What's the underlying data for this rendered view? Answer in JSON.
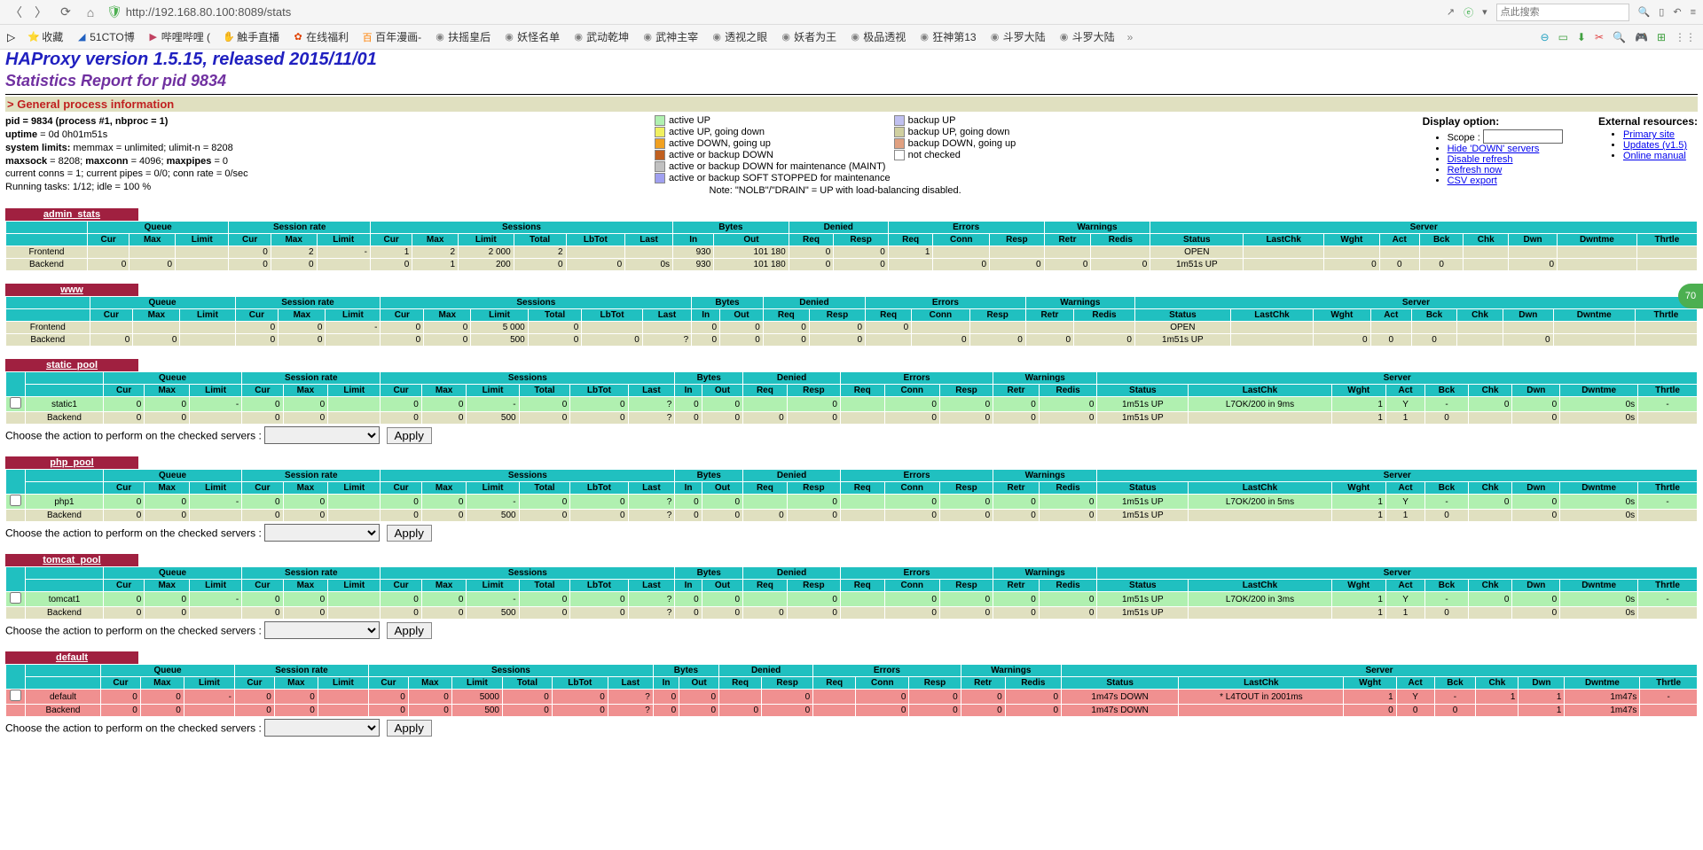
{
  "browser": {
    "url": "http://192.168.80.100:8089/stats",
    "search_placeholder": "点此搜索",
    "bookmarks": [
      {
        "label": "收藏",
        "icon": "⭐",
        "color": "#ffb020"
      },
      {
        "label": "51CTO博",
        "icon": "◢",
        "color": "#2060c0"
      },
      {
        "label": "哔哩哔哩 (",
        "icon": "▶",
        "color": "#c04060"
      },
      {
        "label": "触手直播",
        "icon": "✋",
        "color": "#c04060"
      },
      {
        "label": "在线福利",
        "icon": "✿",
        "color": "#e04000"
      },
      {
        "label": "百年漫画-",
        "icon": "百",
        "color": "#ff8000"
      },
      {
        "label": "扶摇皇后",
        "icon": "◉",
        "color": "#808080"
      },
      {
        "label": "妖怪名单",
        "icon": "◉",
        "color": "#808080"
      },
      {
        "label": "武动乾坤",
        "icon": "◉",
        "color": "#808080"
      },
      {
        "label": "武神主宰",
        "icon": "◉",
        "color": "#808080"
      },
      {
        "label": "透视之眼",
        "icon": "◉",
        "color": "#808080"
      },
      {
        "label": "妖者为王",
        "icon": "◉",
        "color": "#808080"
      },
      {
        "label": "极品透视",
        "icon": "◉",
        "color": "#808080"
      },
      {
        "label": "狂神第13",
        "icon": "◉",
        "color": "#808080"
      },
      {
        "label": "斗罗大陆",
        "icon": "◉",
        "color": "#808080"
      },
      {
        "label": "斗罗大陆",
        "icon": "◉",
        "color": "#808080"
      }
    ]
  },
  "titles": {
    "main": "HAProxy version 1.5.15, released 2015/11/01",
    "sub": "Statistics Report for pid 9834",
    "gpi": "> General process information"
  },
  "proc_info": {
    "l1": "pid = 9834 (process #1, nbproc = 1)",
    "l2": "uptime = 0d 0h01m51s",
    "l3": "system limits: memmax = unlimited; ulimit-n = 8208",
    "l4": "maxsock = 8208; maxconn = 4096; maxpipes = 0",
    "l5": "current conns = 1; current pipes = 0/0; conn rate = 0/sec",
    "l6": "Running tasks: 1/12; idle = 100 %"
  },
  "legend": {
    "col1": [
      {
        "color": "#b0f0b0",
        "label": "active UP"
      },
      {
        "color": "#f0f060",
        "label": "active UP, going down"
      },
      {
        "color": "#f0a020",
        "label": "active DOWN, going up"
      },
      {
        "color": "#c06020",
        "label": "active or backup DOWN"
      },
      {
        "color": "#c0c0c0",
        "label": "active or backup DOWN for maintenance (MAINT)"
      },
      {
        "color": "#a0a0f0",
        "label": "active or backup SOFT STOPPED for maintenance"
      }
    ],
    "col2": [
      {
        "color": "#c0c0f0",
        "label": "backup UP"
      },
      {
        "color": "#d0d0a0",
        "label": "backup UP, going down"
      },
      {
        "color": "#e0a080",
        "label": "backup DOWN, going up"
      },
      {
        "color": "#ffffff",
        "label": "not checked"
      }
    ],
    "note": "Note: \"NOLB\"/\"DRAIN\" = UP with load-balancing disabled."
  },
  "display_option": {
    "title": "Display option:",
    "scope_label": "Scope :",
    "links": [
      "Hide 'DOWN' servers",
      "Disable refresh",
      "Refresh now",
      "CSV export"
    ]
  },
  "ext_res": {
    "title": "External resources:",
    "links": [
      "Primary site",
      "Updates (v1.5)",
      "Online manual"
    ]
  },
  "col_groups": [
    "",
    "Queue",
    "Session rate",
    "Sessions",
    "Bytes",
    "Denied",
    "Errors",
    "Warnings",
    "Server"
  ],
  "sub_cols_fe": [
    "",
    "Cur",
    "Max",
    "Limit",
    "Cur",
    "Max",
    "Limit",
    "Cur",
    "Max",
    "Limit",
    "Total",
    "LbTot",
    "Last",
    "In",
    "Out",
    "Req",
    "Resp",
    "Req",
    "Conn",
    "Resp",
    "Retr",
    "Redis",
    "Status",
    "LastChk",
    "Wght",
    "Act",
    "Bck",
    "Chk",
    "Dwn",
    "Dwntme",
    "Thrtle"
  ],
  "action_label": "Choose the action to perform on the checked servers :",
  "apply_label": "Apply",
  "proxies": [
    {
      "name": "admin_stats",
      "has_checkbox": false,
      "rows": [
        {
          "cls": "",
          "cells": [
            "Frontend",
            "",
            "",
            "",
            "0",
            "2",
            "-",
            "1",
            "2",
            "2 000",
            "2",
            "",
            "",
            "930",
            "101 180",
            "0",
            "0",
            "1",
            "",
            "",
            "",
            "",
            "OPEN",
            "",
            "",
            "",
            "",
            "",
            "",
            "",
            ""
          ]
        },
        {
          "cls": "",
          "cells": [
            "Backend",
            "0",
            "0",
            "",
            "0",
            "0",
            "",
            "0",
            "1",
            "200",
            "0",
            "0",
            "0s",
            "930",
            "101 180",
            "0",
            "0",
            "",
            "0",
            "0",
            "0",
            "0",
            "1m51s UP",
            "",
            "0",
            "0",
            "0",
            "",
            "0",
            "",
            ""
          ]
        }
      ]
    },
    {
      "name": "www",
      "has_checkbox": false,
      "rows": [
        {
          "cls": "",
          "cells": [
            "Frontend",
            "",
            "",
            "",
            "0",
            "0",
            "-",
            "0",
            "0",
            "5 000",
            "0",
            "",
            "",
            "0",
            "0",
            "0",
            "0",
            "0",
            "",
            "",
            "",
            "",
            "OPEN",
            "",
            "",
            "",
            "",
            "",
            "",
            "",
            ""
          ]
        },
        {
          "cls": "",
          "cells": [
            "Backend",
            "0",
            "0",
            "",
            "0",
            "0",
            "",
            "0",
            "0",
            "500",
            "0",
            "0",
            "?",
            "0",
            "0",
            "0",
            "0",
            "",
            "0",
            "0",
            "0",
            "0",
            "1m51s UP",
            "",
            "0",
            "0",
            "0",
            "",
            "0",
            "",
            ""
          ]
        }
      ]
    },
    {
      "name": "static_pool",
      "has_checkbox": true,
      "rows": [
        {
          "cls": "up",
          "chk": true,
          "cells": [
            "static1",
            "0",
            "0",
            "-",
            "0",
            "0",
            "",
            "0",
            "0",
            "-",
            "0",
            "0",
            "?",
            "0",
            "0",
            "",
            "0",
            "",
            "0",
            "0",
            "0",
            "0",
            "1m51s UP",
            "L7OK/200 in 9ms",
            "1",
            "Y",
            "-",
            "0",
            "0",
            "0s",
            "-"
          ]
        },
        {
          "cls": "",
          "chk": false,
          "cells": [
            "Backend",
            "0",
            "0",
            "",
            "0",
            "0",
            "",
            "0",
            "0",
            "500",
            "0",
            "0",
            "?",
            "0",
            "0",
            "0",
            "0",
            "",
            "0",
            "0",
            "0",
            "0",
            "1m51s UP",
            "",
            "1",
            "1",
            "0",
            "",
            "0",
            "0s",
            ""
          ]
        }
      ]
    },
    {
      "name": "php_pool",
      "has_checkbox": true,
      "rows": [
        {
          "cls": "up",
          "chk": true,
          "cells": [
            "php1",
            "0",
            "0",
            "-",
            "0",
            "0",
            "",
            "0",
            "0",
            "-",
            "0",
            "0",
            "?",
            "0",
            "0",
            "",
            "0",
            "",
            "0",
            "0",
            "0",
            "0",
            "1m51s UP",
            "L7OK/200 in 5ms",
            "1",
            "Y",
            "-",
            "0",
            "0",
            "0s",
            "-"
          ]
        },
        {
          "cls": "",
          "chk": false,
          "cells": [
            "Backend",
            "0",
            "0",
            "",
            "0",
            "0",
            "",
            "0",
            "0",
            "500",
            "0",
            "0",
            "?",
            "0",
            "0",
            "0",
            "0",
            "",
            "0",
            "0",
            "0",
            "0",
            "1m51s UP",
            "",
            "1",
            "1",
            "0",
            "",
            "0",
            "0s",
            ""
          ]
        }
      ]
    },
    {
      "name": "tomcat_pool",
      "has_checkbox": true,
      "rows": [
        {
          "cls": "up",
          "chk": true,
          "cells": [
            "tomcat1",
            "0",
            "0",
            "-",
            "0",
            "0",
            "",
            "0",
            "0",
            "-",
            "0",
            "0",
            "?",
            "0",
            "0",
            "",
            "0",
            "",
            "0",
            "0",
            "0",
            "0",
            "1m51s UP",
            "L7OK/200 in 3ms",
            "1",
            "Y",
            "-",
            "0",
            "0",
            "0s",
            "-"
          ]
        },
        {
          "cls": "",
          "chk": false,
          "cells": [
            "Backend",
            "0",
            "0",
            "",
            "0",
            "0",
            "",
            "0",
            "0",
            "500",
            "0",
            "0",
            "?",
            "0",
            "0",
            "0",
            "0",
            "",
            "0",
            "0",
            "0",
            "0",
            "1m51s UP",
            "",
            "1",
            "1",
            "0",
            "",
            "0",
            "0s",
            ""
          ]
        }
      ]
    },
    {
      "name": "default",
      "has_checkbox": true,
      "rows": [
        {
          "cls": "down",
          "chk": true,
          "cells": [
            "default",
            "0",
            "0",
            "-",
            "0",
            "0",
            "",
            "0",
            "0",
            "5000",
            "0",
            "0",
            "?",
            "0",
            "0",
            "",
            "0",
            "",
            "0",
            "0",
            "0",
            "0",
            "1m47s DOWN",
            "* L4TOUT in 2001ms",
            "1",
            "Y",
            "-",
            "1",
            "1",
            "1m47s",
            "-"
          ]
        },
        {
          "cls": "down",
          "chk": false,
          "cells": [
            "Backend",
            "0",
            "0",
            "",
            "0",
            "0",
            "",
            "0",
            "0",
            "500",
            "0",
            "0",
            "?",
            "0",
            "0",
            "0",
            "0",
            "",
            "0",
            "0",
            "0",
            "0",
            "1m47s DOWN",
            "",
            "0",
            "0",
            "0",
            "",
            "1",
            "1m47s",
            ""
          ]
        }
      ]
    }
  ],
  "group_spans": [
    1,
    3,
    3,
    6,
    2,
    2,
    3,
    2,
    9
  ],
  "side_badge": "70"
}
